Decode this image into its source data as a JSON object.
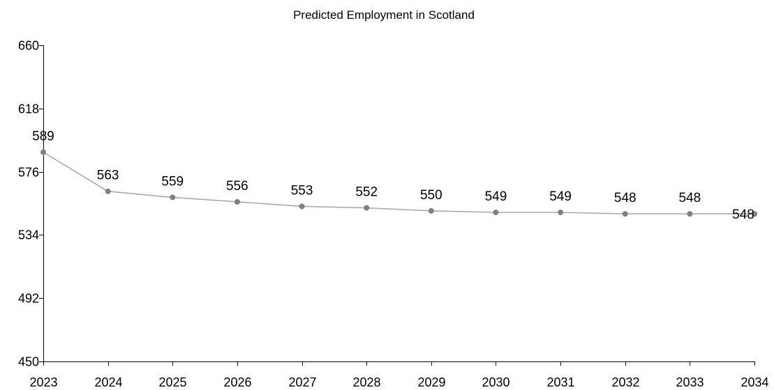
{
  "chart_data": {
    "type": "line",
    "title": "Predicted Employment in Scotland",
    "xlabel": "",
    "ylabel": "",
    "x": [
      "2023",
      "2024",
      "2025",
      "2026",
      "2027",
      "2028",
      "2029",
      "2030",
      "2031",
      "2032",
      "2033",
      "2034"
    ],
    "series": [
      {
        "values": [
          589,
          563,
          559,
          556,
          553,
          552,
          550,
          549,
          549,
          548,
          548,
          548
        ]
      }
    ],
    "data_labels": [
      "589",
      "563",
      "559",
      "556",
      "553",
      "552",
      "550",
      "549",
      "549",
      "548",
      "548",
      "548"
    ],
    "ylim": [
      450,
      660
    ],
    "yticks": [
      "450",
      "492",
      "534",
      "576",
      "618",
      "660"
    ],
    "grid": false,
    "legend": "none",
    "colors": {
      "line": "#a9a9a9",
      "marker": "#808080",
      "axis": "#000000"
    }
  }
}
